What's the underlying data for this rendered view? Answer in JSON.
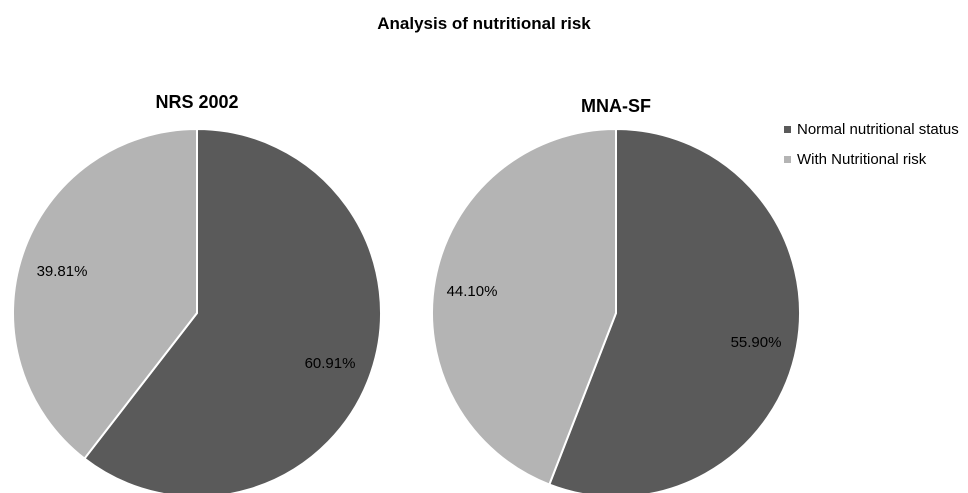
{
  "title": "Analysis of nutritional risk",
  "legend": {
    "position": "right",
    "items": [
      {
        "label": "Normal nutritional status",
        "color": "#5a5a5a"
      },
      {
        "label": "With Nutritional risk",
        "color": "#b4b4b4"
      }
    ]
  },
  "chart_data": [
    {
      "type": "pie",
      "title": "NRS 2002",
      "categories": [
        "Normal nutritional status",
        "With Nutritional risk"
      ],
      "values": [
        60.91,
        39.81
      ],
      "labels": [
        "60.91%",
        "39.81%"
      ],
      "colors": [
        "#5a5a5a",
        "#b4b4b4"
      ]
    },
    {
      "type": "pie",
      "title": "MNA-SF",
      "categories": [
        "Normal nutritional status",
        "With Nutritional risk"
      ],
      "values": [
        55.9,
        44.1
      ],
      "labels": [
        "55.90%",
        "44.10%"
      ],
      "colors": [
        "#5a5a5a",
        "#b4b4b4"
      ]
    }
  ]
}
